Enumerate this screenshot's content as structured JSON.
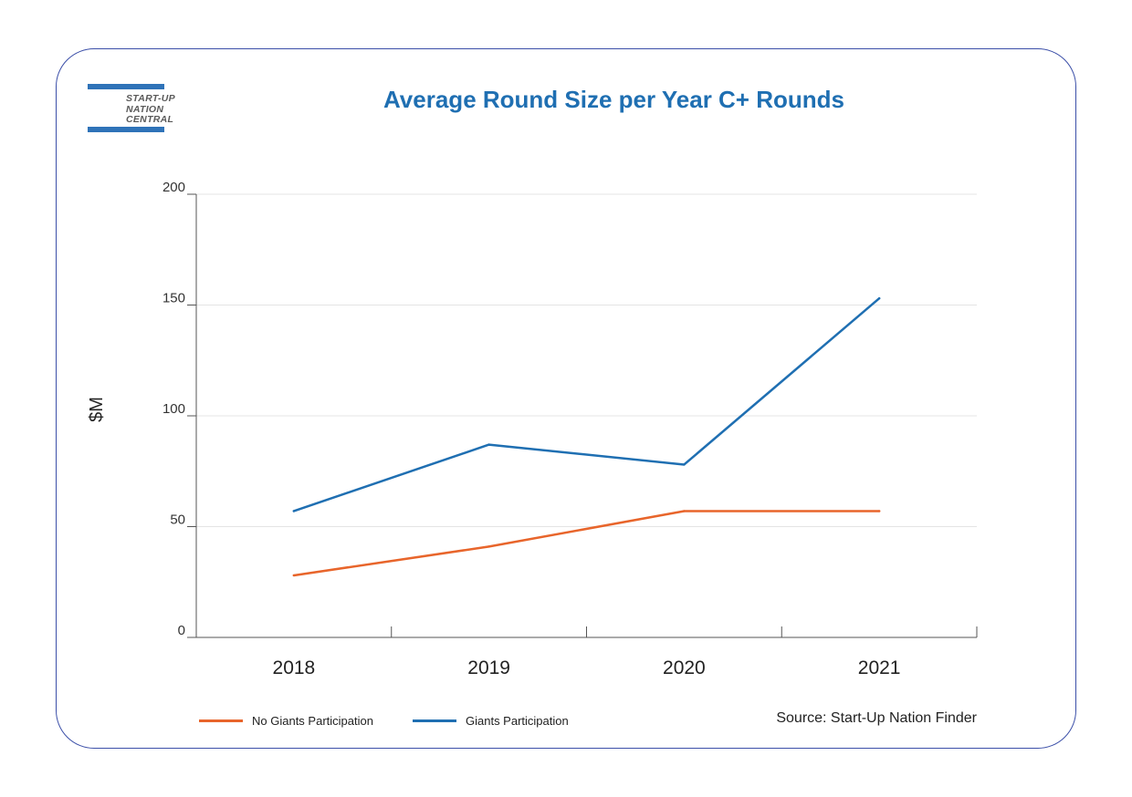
{
  "logo": {
    "line1": "START-UP",
    "line2": "NATION",
    "line3": "CENTRAL",
    "color": "#2f73b8"
  },
  "source": "Source: Start-Up Nation Finder",
  "chart_data": {
    "type": "line",
    "title": "Average Round Size per Year C+ Rounds",
    "xlabel": "",
    "ylabel": "$M",
    "categories": [
      "2018",
      "2019",
      "2020",
      "2021"
    ],
    "ylim": [
      0,
      200
    ],
    "yticks": [
      0,
      50,
      100,
      150,
      200
    ],
    "grid": true,
    "legend_position": "bottom-left",
    "series": [
      {
        "name": "No Giants Participation",
        "color": "#e8652b",
        "values": [
          28,
          41,
          57,
          57
        ]
      },
      {
        "name": "Giants Participation",
        "color": "#1f6fb2",
        "values": [
          57,
          87,
          78,
          153
        ]
      }
    ]
  }
}
